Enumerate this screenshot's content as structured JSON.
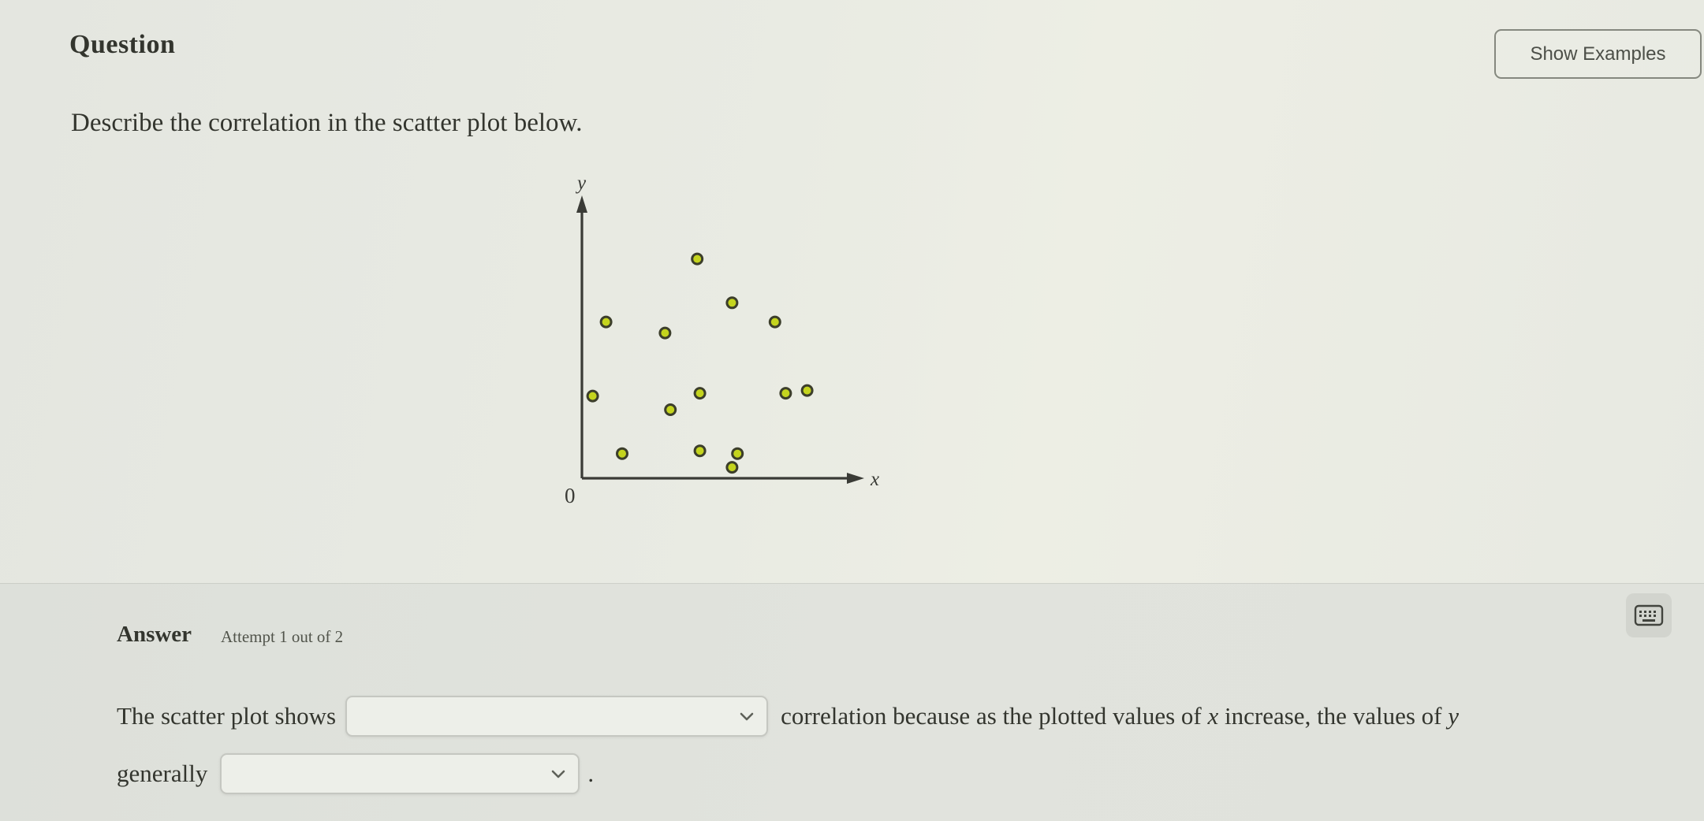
{
  "header": {
    "title": "Question",
    "show_examples_label": "Show Examples"
  },
  "question": {
    "prompt": "Describe the correlation in the scatter plot below."
  },
  "answer": {
    "heading": "Answer",
    "attempt_label": "Attempt 1 out of 2",
    "keyboard_icon": "keyboard-icon",
    "sentence": {
      "part1": "The scatter plot shows",
      "dropdown1_value": "",
      "part2a": "correlation because as the plotted values of ",
      "x_var": "x",
      "part2b": " increase, the values of ",
      "y_var": "y",
      "part3": "generally",
      "dropdown2_value": "",
      "period": "."
    }
  },
  "chart_data": {
    "type": "scatter",
    "title": "",
    "xlabel": "x",
    "ylabel": "y",
    "origin_label": "0",
    "xlim": [
      0,
      10
    ],
    "ylim": [
      0,
      10
    ],
    "grid": false,
    "legend": false,
    "points": [
      [
        4.3,
        8.0
      ],
      [
        5.6,
        6.4
      ],
      [
        0.9,
        5.7
      ],
      [
        7.2,
        5.7
      ],
      [
        3.1,
        5.3
      ],
      [
        0.4,
        3.0
      ],
      [
        4.4,
        3.1
      ],
      [
        7.6,
        3.1
      ],
      [
        8.4,
        3.2
      ],
      [
        3.3,
        2.5
      ],
      [
        1.5,
        0.9
      ],
      [
        4.4,
        1.0
      ],
      [
        5.8,
        0.9
      ],
      [
        5.6,
        0.4
      ]
    ],
    "point_fill": "#c4d41e",
    "point_stroke": "#3c3e2b",
    "axis_color": "#3a3b36"
  }
}
